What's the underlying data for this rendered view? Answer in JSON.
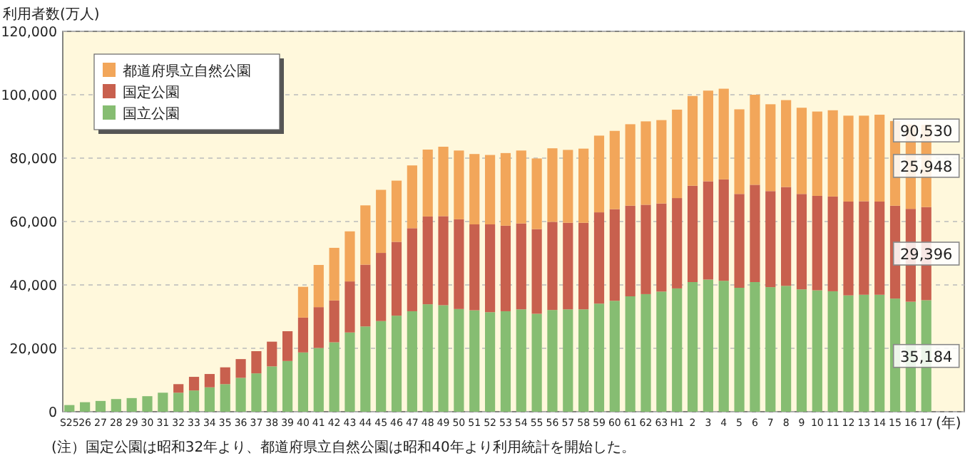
{
  "chart_data": {
    "type": "bar",
    "stacked": true,
    "ylabel": "利用者数(万人)",
    "xlabel": "(年)",
    "annotations": [
      "(注）国定公園は昭和32年より、都道府県立自然公園は昭和40年より利用統計を開始した。"
    ],
    "categories": [
      "S25",
      "26",
      "27",
      "28",
      "29",
      "30",
      "31",
      "32",
      "33",
      "34",
      "35",
      "36",
      "37",
      "38",
      "39",
      "40",
      "41",
      "42",
      "43",
      "44",
      "45",
      "46",
      "47",
      "48",
      "49",
      "50",
      "51",
      "52",
      "53",
      "54",
      "55",
      "56",
      "57",
      "58",
      "59",
      "60",
      "61",
      "62",
      "63",
      "H1",
      "2",
      "3",
      "4",
      "5",
      "6",
      "7",
      "8",
      "9",
      "10",
      "11",
      "12",
      "13",
      "14",
      "15",
      "16",
      "17"
    ],
    "series": [
      {
        "name": "国立公園",
        "color": "#86bd72",
        "values": [
          2100,
          3000,
          3400,
          4000,
          4300,
          4900,
          6000,
          6000,
          6700,
          7700,
          8700,
          10700,
          12100,
          14300,
          16000,
          18700,
          20100,
          21900,
          25000,
          26900,
          28600,
          30300,
          31700,
          33900,
          33600,
          32400,
          32000,
          31400,
          31700,
          32300,
          30900,
          32100,
          32300,
          32300,
          34100,
          35000,
          36400,
          37100,
          37900,
          38900,
          40900,
          41700,
          41300,
          39100,
          40900,
          39300,
          39700,
          38600,
          38300,
          38000,
          36700,
          36900,
          36900,
          35700,
          34700,
          35184
        ],
        "value_labels": [
          null,
          null,
          null,
          null,
          null,
          null,
          null,
          null,
          null,
          null,
          null,
          null,
          null,
          null,
          null,
          null,
          null,
          null,
          null,
          null,
          null,
          null,
          null,
          null,
          null,
          null,
          null,
          null,
          null,
          null,
          null,
          null,
          null,
          null,
          null,
          null,
          null,
          null,
          null,
          null,
          null,
          null,
          null,
          null,
          null,
          null,
          null,
          null,
          null,
          null,
          null,
          null,
          null,
          null,
          null,
          "35,184"
        ]
      },
      {
        "name": "国定公園",
        "color": "#c8604e",
        "values": [
          null,
          null,
          null,
          null,
          null,
          null,
          null,
          2700,
          4300,
          4200,
          5300,
          5900,
          7000,
          7800,
          9400,
          11000,
          12900,
          13200,
          16100,
          19500,
          21500,
          23300,
          26200,
          27700,
          28100,
          28300,
          27100,
          27700,
          27000,
          27100,
          26700,
          27800,
          27300,
          27300,
          28800,
          28900,
          28600,
          28200,
          27800,
          28500,
          30400,
          31000,
          32000,
          29600,
          30700,
          30300,
          31200,
          30100,
          29800,
          29900,
          29600,
          29500,
          29400,
          29300,
          29300,
          29396
        ],
        "value_labels": [
          null,
          null,
          null,
          null,
          null,
          null,
          null,
          null,
          null,
          null,
          null,
          null,
          null,
          null,
          null,
          null,
          null,
          null,
          null,
          null,
          null,
          null,
          null,
          null,
          null,
          null,
          null,
          null,
          null,
          null,
          null,
          null,
          null,
          null,
          null,
          null,
          null,
          null,
          null,
          null,
          null,
          null,
          null,
          null,
          null,
          null,
          null,
          null,
          null,
          null,
          null,
          null,
          null,
          null,
          null,
          "29,396"
        ]
      },
      {
        "name": "都道府県立自然公園",
        "color": "#f2a65a",
        "values": [
          null,
          null,
          null,
          null,
          null,
          null,
          null,
          null,
          null,
          null,
          null,
          null,
          null,
          null,
          null,
          9700,
          13300,
          16600,
          15800,
          18700,
          19900,
          19300,
          19800,
          21100,
          21900,
          21700,
          22200,
          21900,
          22900,
          23000,
          22300,
          23200,
          23000,
          23400,
          24200,
          24700,
          25700,
          26300,
          26300,
          27900,
          28300,
          28600,
          28600,
          26700,
          28400,
          27400,
          27400,
          27200,
          26600,
          27200,
          27100,
          27000,
          27400,
          26700,
          26600,
          25948
        ],
        "value_labels": [
          null,
          null,
          null,
          null,
          null,
          null,
          null,
          null,
          null,
          null,
          null,
          null,
          null,
          null,
          null,
          null,
          null,
          null,
          null,
          null,
          null,
          null,
          null,
          null,
          null,
          null,
          null,
          null,
          null,
          null,
          null,
          null,
          null,
          null,
          null,
          null,
          null,
          null,
          null,
          null,
          null,
          null,
          null,
          null,
          null,
          null,
          null,
          null,
          null,
          null,
          null,
          null,
          null,
          null,
          null,
          "25,948"
        ]
      }
    ],
    "totals": [
      null,
      null,
      null,
      null,
      null,
      null,
      null,
      null,
      null,
      null,
      null,
      null,
      null,
      null,
      null,
      null,
      null,
      null,
      null,
      null,
      null,
      null,
      null,
      null,
      null,
      null,
      null,
      null,
      null,
      null,
      null,
      null,
      null,
      null,
      null,
      null,
      null,
      null,
      null,
      null,
      null,
      null,
      null,
      null,
      null,
      null,
      null,
      null,
      null,
      null,
      null,
      null,
      null,
      null,
      null,
      "90,530"
    ],
    "ylim": [
      0,
      120000
    ],
    "yticks": [
      0,
      {
        "value": 20000,
        "label": "20,000"
      },
      {
        "value": 40000,
        "label": "40,000"
      },
      {
        "value": 60000,
        "label": "60,000"
      },
      {
        "value": 80000,
        "label": "80,000"
      },
      {
        "value": 100000,
        "label": "100,000"
      },
      {
        "value": 120000,
        "label": "120,000"
      }
    ],
    "grid": "y",
    "legend": "top left"
  }
}
